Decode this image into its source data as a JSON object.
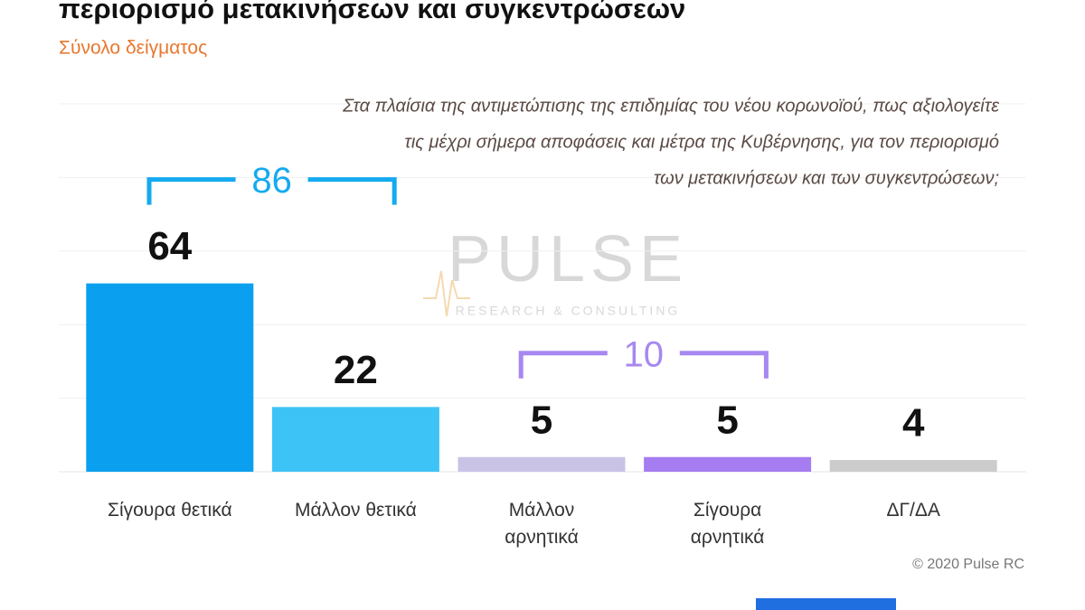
{
  "chart_data": {
    "type": "bar",
    "title": "περιορισμό μετακινήσεων και συγκεντρώσεων",
    "subtitle": "Σύνολο δείγματος",
    "question": [
      "Στα πλαίσια της αντιμετώπισης της επιδημίας του νέου κορωνοϊού, πως αξιολογείτε",
      "τις μέχρι σήμερα αποφάσεις και μέτρα της Κυβέρνησης, για τον περιορισμό",
      "των μετακινήσεων και των συγκεντρώσεων;"
    ],
    "categories": [
      "Σίγουρα θετικά",
      "Μάλλον θετικά",
      "Μάλλον αρνητικά",
      "Σίγουρα αρνητικά",
      "ΔΓ/ΔΑ"
    ],
    "values": [
      64,
      22,
      5,
      5,
      4
    ],
    "colors": [
      "#0aa0ef",
      "#3ec3f7",
      "#c9c3e6",
      "#a57df0",
      "#cccccc"
    ],
    "ylim": [
      0,
      125
    ],
    "grid": true,
    "annotations": [
      {
        "value": 86,
        "color": "#14aaf0",
        "from": 0,
        "to": 1
      },
      {
        "value": 10,
        "color": "#a788f0",
        "from": 2,
        "to": 3
      }
    ],
    "watermark": {
      "name": "PULSE",
      "tagline": "RESEARCH & CONSULTING"
    },
    "credit": "© 2020 Pulse RC"
  }
}
